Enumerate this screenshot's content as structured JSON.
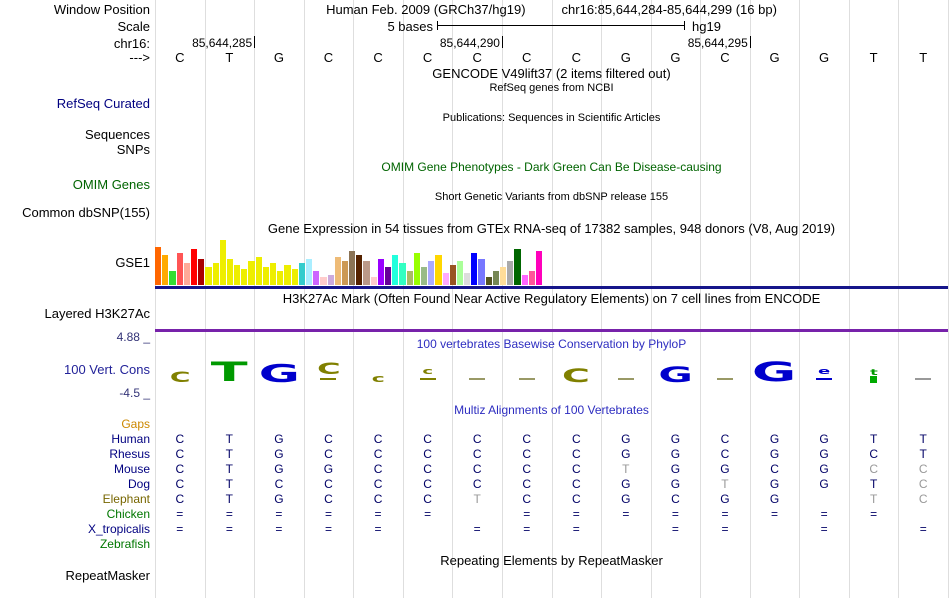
{
  "header": {
    "window_label": "Window Position",
    "assembly": "Human Feb. 2009 (GRCh37/hg19)",
    "position": "chr16:85,644,284-85,644,299 (16 bp)",
    "scale_label": "Scale",
    "scale_value": "5 bases",
    "genome": "hg19",
    "chrom_label": "chr16:",
    "arrow_label": "--->"
  },
  "ruler_ticks": [
    {
      "label": "85,644,285",
      "col": 2
    },
    {
      "label": "85,644,290",
      "col": 7
    },
    {
      "label": "85,644,295",
      "col": 12
    }
  ],
  "sequence": [
    "C",
    "T",
    "G",
    "C",
    "C",
    "C",
    "C",
    "C",
    "C",
    "G",
    "G",
    "C",
    "G",
    "G",
    "T",
    "T"
  ],
  "tracks": {
    "gencode_title": "GENCODE V49lift37 (2 items filtered out)",
    "refseq_subtitle": "RefSeq genes from NCBI",
    "refseq_label": "RefSeq Curated",
    "publications_title": "Publications: Sequences in Scientific Articles",
    "sequences_label": "Sequences",
    "snps_label": "SNPs",
    "omim_title": "OMIM Gene Phenotypes - Dark Green Can Be Disease-causing",
    "omim_label": "OMIM Genes",
    "dbsnp_title": "Short Genetic Variants from dbSNP release 155",
    "dbsnp_label": "Common dbSNP(155)",
    "gtex_title": "Gene Expression in 54 tissues from GTEx RNA-seq of 17382 samples, 948 donors (V8, Aug 2019)",
    "gtex_label": "GSE1",
    "h3k27ac_title": "H3K27Ac Mark (Often Found Near Active Regulatory Elements) on 7 cell lines from ENCODE",
    "h3k27ac_label": "Layered H3K27Ac",
    "phylop_title": "100 vertebrates Basewise Conservation by PhyloP",
    "phylop_label": "100 Vert. Cons",
    "phylop_max": "4.88 _",
    "phylop_min": "-4.5 _",
    "multiz_title": "Multiz Alignments of 100 Vertebrates",
    "repeat_title": "Repeating Elements by RepeatMasker",
    "repeat_label": "RepeatMasker"
  },
  "colors": {
    "gtex_baseline": "#15158a",
    "h3k27ac_baseline": "#7722aa",
    "title_blue": "#2d2dc0",
    "omim_green": "#006400",
    "refseq_navy": "#000080",
    "gridline": "#dedede"
  },
  "chart_data": {
    "type": "bar",
    "title": "Gene Expression in 54 tissues from GTEx RNA-seq of 17382 samples, 948 donors (V8, Aug 2019)",
    "n_tissues": 54,
    "values": [
      38,
      30,
      14,
      32,
      22,
      36,
      26,
      18,
      22,
      45,
      26,
      20,
      16,
      24,
      28,
      18,
      22,
      14,
      20,
      16,
      22,
      26,
      14,
      8,
      10,
      28,
      24,
      34,
      30,
      24,
      8,
      26,
      18,
      30,
      22,
      14,
      32,
      18,
      24,
      30,
      12,
      20,
      24,
      12,
      32,
      26,
      8,
      14,
      18,
      24,
      36,
      10,
      14,
      34
    ],
    "colors": [
      "#FF6600",
      "#FFAA00",
      "#33DD33",
      "#FF5555",
      "#FFAA99",
      "#FF0000",
      "#AA0000",
      "#EEEE00",
      "#EEEE00",
      "#EEEE00",
      "#EEEE00",
      "#EEEE00",
      "#EEEE00",
      "#EEEE00",
      "#EEEE00",
      "#EEEE00",
      "#EEEE00",
      "#EEEE00",
      "#EEEE00",
      "#EEEE00",
      "#33CCCC",
      "#AAEEFF",
      "#CC66FF",
      "#FFCCCC",
      "#CCAADD",
      "#EEBB77",
      "#CC9955",
      "#8B7355",
      "#552200",
      "#BB9988",
      "#FFCCCC",
      "#9900FF",
      "#660099",
      "#22FFDD",
      "#33FFC2",
      "#AABB66",
      "#99FF00",
      "#99BB88",
      "#AAAAFF",
      "#FFD700",
      "#FFAAFF",
      "#995522",
      "#AAFF99",
      "#DDDDDD",
      "#0000FF",
      "#7777FF",
      "#555522",
      "#778855",
      "#FFDD99",
      "#AAAAAA",
      "#006600",
      "#FF66FF",
      "#FF5599",
      "#FF00BB"
    ]
  },
  "phylop_logo": [
    {
      "letter": "C",
      "color": "#808000",
      "h": 14,
      "dash": false
    },
    {
      "letter": "T",
      "color": "#009900",
      "h": 27,
      "dash": false
    },
    {
      "letter": "G",
      "color": "#0000cc",
      "h": 25,
      "dash": false
    },
    {
      "letter": "C",
      "color": "#808000",
      "h": 16,
      "dash": true
    },
    {
      "letter": "c",
      "color": "#808000",
      "h": 11,
      "dash": false
    },
    {
      "letter": "c",
      "color": "#808000",
      "h": 9,
      "dash": true
    },
    {
      "letter": "",
      "color": "#999966",
      "h": 0,
      "dash": true
    },
    {
      "letter": "",
      "color": "#999966",
      "h": 0,
      "dash": true
    },
    {
      "letter": "C",
      "color": "#808000",
      "h": 19,
      "dash": false
    },
    {
      "letter": "",
      "color": "#999966",
      "h": 0,
      "dash": true
    },
    {
      "letter": "G",
      "color": "#0000cc",
      "h": 21,
      "dash": false
    },
    {
      "letter": "",
      "color": "#999966",
      "h": 0,
      "dash": true
    },
    {
      "letter": "G",
      "color": "#0000cc",
      "h": 27,
      "dash": false
    },
    {
      "letter": "e",
      "color": "#0000cc",
      "h": 9,
      "dash": true
    },
    {
      "letter": "t",
      "color": "#009900",
      "h": 8,
      "dash": false,
      "box": "#00aa00"
    },
    {
      "letter": "",
      "color": "#999999",
      "h": 0,
      "dash": true
    }
  ],
  "alignment": {
    "letter_color": "#000066",
    "dim_color": "#999999",
    "rows": [
      {
        "name": "Gaps",
        "color": "#cc8800",
        "cells": [
          "",
          "",
          "",
          "",
          "",
          "",
          "",
          "",
          "",
          "",
          "",
          "",
          "",
          "",
          "",
          ""
        ]
      },
      {
        "name": "Human",
        "color": "#000080",
        "cells": [
          "C",
          "T",
          "G",
          "C",
          "C",
          "C",
          "C",
          "C",
          "C",
          "G",
          "G",
          "C",
          "G",
          "G",
          "T",
          "T"
        ]
      },
      {
        "name": "Rhesus",
        "color": "#000080",
        "cells": [
          "C",
          "T",
          "G",
          "C",
          "C",
          "C",
          "C",
          "C",
          "C",
          "G",
          "G",
          "C",
          "G",
          "G",
          "C",
          "T"
        ]
      },
      {
        "name": "Mouse",
        "color": "#000080",
        "cells": [
          "C",
          "T",
          "G",
          "G",
          "C",
          "C",
          "C",
          "C",
          "C",
          "T*",
          "G",
          "G",
          "C",
          "G",
          "C*",
          "C*"
        ]
      },
      {
        "name": "Dog",
        "color": "#000080",
        "cells": [
          "C",
          "T",
          "C",
          "C",
          "C",
          "C",
          "C",
          "C",
          "C",
          "G",
          "G",
          "T*",
          "G",
          "G",
          "T",
          "C*"
        ]
      },
      {
        "name": "Elephant",
        "color": "#776600",
        "cells": [
          "C",
          "T",
          "G",
          "C",
          "C",
          "C",
          "T*",
          "C",
          "C",
          "G",
          "C",
          "G",
          "G",
          "",
          "T*",
          "C*"
        ]
      },
      {
        "name": "Chicken",
        "color": "#007700",
        "cells": [
          "=",
          "=",
          "=",
          "=",
          "=",
          "=",
          "",
          "=",
          "=",
          "=",
          "=",
          "=",
          "=",
          "=",
          "=",
          ""
        ]
      },
      {
        "name": "X_tropicalis",
        "color": "#000080",
        "cells": [
          "=",
          "=",
          "=",
          "=",
          "=",
          "",
          "=",
          "=",
          "=",
          "",
          "=",
          "=",
          "",
          "=",
          "",
          "="
        ]
      },
      {
        "name": "Zebrafish",
        "color": "#007700",
        "cells": [
          "",
          "",
          "",
          "",
          "",
          "",
          "",
          "",
          "",
          "",
          "",
          "",
          "",
          "",
          "",
          ""
        ]
      }
    ]
  }
}
